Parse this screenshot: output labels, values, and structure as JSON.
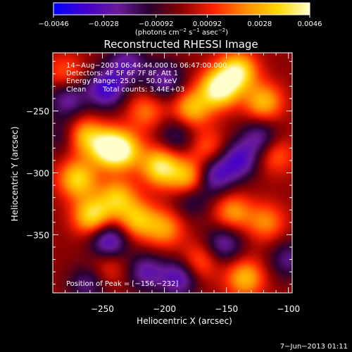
{
  "chart_data": {
    "type": "heatmap",
    "title": "Reconstructed RHESSI Image",
    "xlabel": "Heliocentric X (arcsec)",
    "ylabel": "Heliocentric Y (arcsec)",
    "xlim": [
      -290,
      -97
    ],
    "ylim": [
      -397,
      -203
    ],
    "xticks": [
      -250,
      -200,
      -150,
      -100
    ],
    "yticks": [
      -250,
      -300,
      -350
    ],
    "xtick_labels": [
      "−250",
      "−200",
      "−150",
      "−100"
    ],
    "ytick_labels": [
      "−250",
      "−300",
      "−350"
    ],
    "colorbar": {
      "range": [
        -0.0046,
        0.0046
      ],
      "ticks": [
        -0.0046,
        -0.0028,
        -0.00092,
        0.00092,
        0.0028,
        0.0046
      ],
      "tick_labels": [
        "−0.0046",
        "−0.0028",
        "−0.00092",
        "0.00092",
        "0.0028",
        "0.0046"
      ],
      "unit_base": "(photons cm",
      "unit_exp1": "−2",
      "unit_mid": " s",
      "unit_exp2": "−1",
      "unit_end": " asec",
      "unit_exp3": "−2",
      "unit_close": ")",
      "colors": [
        "#0000ff",
        "#4400cc",
        "#6a1a9a",
        "#2a0030",
        "#8b0000",
        "#ff2200",
        "#ff8c00",
        "#ffd700",
        "#ffffcc"
      ]
    },
    "annotations": {
      "time_range": "14−Aug−2003 06:44:44.000 to 06:47:00.000",
      "detectors": "Detectors: 4F 5F 6F 7F 8F, Att 1",
      "energy": "Energy Range: 25.0 − 50.0 keV",
      "method": "Clean",
      "counts": "Total counts: 3.44E+03",
      "peak": "Position of Peak = [−156,−232]"
    },
    "peak_position": [
      -156,
      -232
    ],
    "bright_sources": [
      {
        "x": -156,
        "y": -232,
        "value": 0.0046
      },
      {
        "x": -141,
        "y": -218,
        "value": 0.004
      },
      {
        "x": -120,
        "y": -243,
        "value": 0.003
      },
      {
        "x": -178,
        "y": -248,
        "value": 0.003
      },
      {
        "x": -245,
        "y": -280,
        "value": 0.0042
      },
      {
        "x": -265,
        "y": -270,
        "value": 0.003
      },
      {
        "x": -270,
        "y": -305,
        "value": 0.0035
      },
      {
        "x": -258,
        "y": -335,
        "value": 0.0038
      },
      {
        "x": -238,
        "y": -320,
        "value": 0.003
      },
      {
        "x": -232,
        "y": -282,
        "value": 0.003
      },
      {
        "x": -203,
        "y": -295,
        "value": 0.004
      },
      {
        "x": -180,
        "y": -305,
        "value": 0.0035
      },
      {
        "x": -222,
        "y": -338,
        "value": 0.003
      },
      {
        "x": -200,
        "y": -345,
        "value": 0.0025
      },
      {
        "x": -172,
        "y": -372,
        "value": 0.002
      },
      {
        "x": -145,
        "y": -332,
        "value": 0.0025
      },
      {
        "x": -118,
        "y": -340,
        "value": 0.0022
      },
      {
        "x": -135,
        "y": -385,
        "value": 0.003
      },
      {
        "x": -111,
        "y": -285,
        "value": 0.002
      },
      {
        "x": -215,
        "y": -250,
        "value": 0.002
      },
      {
        "x": -165,
        "y": -280,
        "value": 0.0018
      },
      {
        "x": -280,
        "y": -220,
        "value": 0.0018
      },
      {
        "x": -245,
        "y": -375,
        "value": 0.0015
      }
    ],
    "dark_sources": [
      {
        "x": -247,
        "y": -232,
        "value": -0.0035
      },
      {
        "x": -278,
        "y": -240,
        "value": -0.0025
      },
      {
        "x": -230,
        "y": -212,
        "value": -0.0025
      },
      {
        "x": -200,
        "y": -225,
        "value": -0.0025
      },
      {
        "x": -140,
        "y": -290,
        "value": -0.003
      },
      {
        "x": -123,
        "y": -272,
        "value": -0.0025
      },
      {
        "x": -160,
        "y": -302,
        "value": -0.003
      },
      {
        "x": -245,
        "y": -355,
        "value": -0.0035
      },
      {
        "x": -188,
        "y": -385,
        "value": -0.003
      },
      {
        "x": -215,
        "y": -380,
        "value": -0.0025
      },
      {
        "x": -152,
        "y": -357,
        "value": -0.0025
      },
      {
        "x": -100,
        "y": -370,
        "value": -0.002
      },
      {
        "x": -178,
        "y": -320,
        "value": -0.002
      },
      {
        "x": -262,
        "y": -390,
        "value": -0.002
      },
      {
        "x": -190,
        "y": -270,
        "value": -0.0018
      },
      {
        "x": -282,
        "y": -270,
        "value": -0.0015
      }
    ]
  },
  "footer": {
    "timestamp": "7−Jun−2013 01:11"
  }
}
